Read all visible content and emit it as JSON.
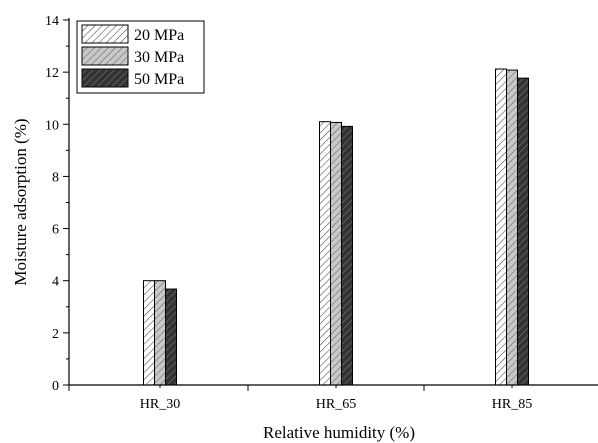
{
  "chart_data": {
    "type": "bar",
    "title": "",
    "xlabel": "Relative humidity (%)",
    "ylabel": "Moisture adsorption (%)",
    "ylim": [
      0,
      14
    ],
    "yticks": [
      "0",
      "2",
      "4",
      "6",
      "8",
      "10",
      "12",
      "14"
    ],
    "categories": [
      "HR_30",
      "HR_65",
      "HR_85"
    ],
    "series": [
      {
        "name": "20 MPa",
        "values": [
          4.0,
          10.1,
          12.12
        ],
        "fill": "#ffffff",
        "hatch": "#555555"
      },
      {
        "name": "30 MPa",
        "values": [
          4.0,
          10.07,
          12.08
        ],
        "fill": "#c8c8c8",
        "hatch": "#6a6a6a"
      },
      {
        "name": "50 MPa",
        "values": [
          3.68,
          9.92,
          11.77
        ],
        "fill": "#333333",
        "hatch": "#777777"
      }
    ],
    "legend_position": "top-left",
    "grid": false
  }
}
